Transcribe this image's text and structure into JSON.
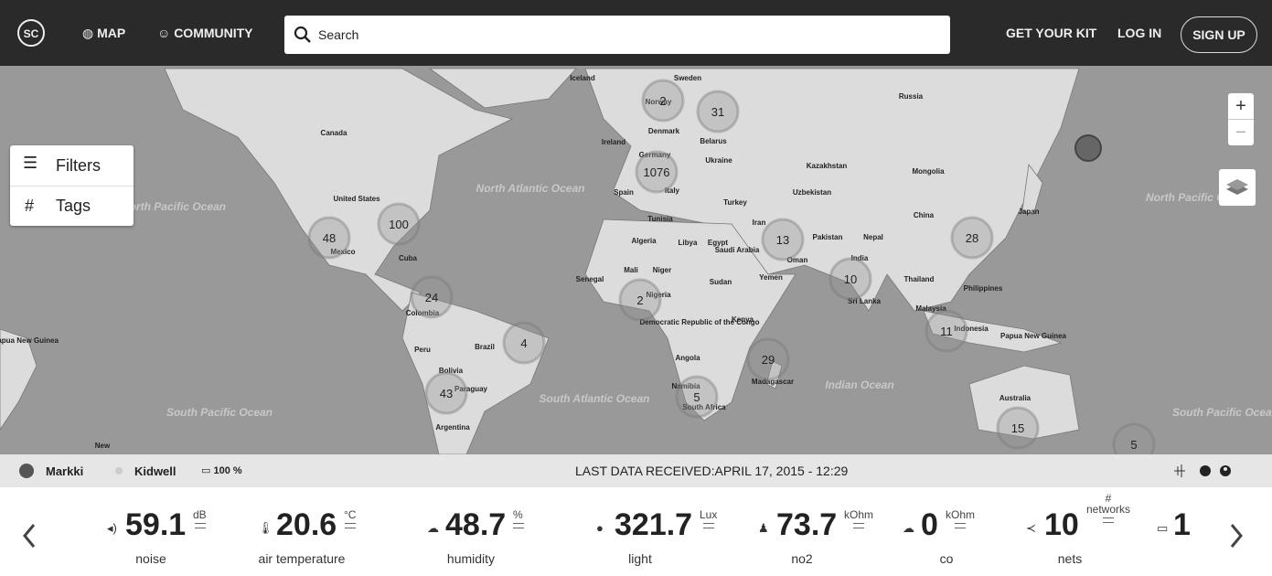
{
  "nav": {
    "logo": "SC",
    "map": "MAP",
    "community": "COMMUNITY",
    "search_placeholder": "Search",
    "get_kit": "GET YOUR KIT",
    "log_in": "LOG IN",
    "sign_up": "SIGN UP"
  },
  "map_controls": {
    "filters": "Filters",
    "tags": "Tags",
    "zoom_in": "+",
    "zoom_out": "−"
  },
  "map_labels": [
    "Iceland",
    "Sweden",
    "Russia",
    "Norway",
    "Denmark",
    "Ireland",
    "Belarus",
    "Canada",
    "Germany",
    "Ukraine",
    "Kazakhstan",
    "Mongolia",
    "Spain",
    "Italy",
    "Turkey",
    "Uzbekistan",
    "United States",
    "North Atlantic Ocean",
    "North Pacific Ocean",
    "China",
    "Japan",
    "Tunisia",
    "Iran",
    "Algeria",
    "Libya",
    "Egypt",
    "Saudi Arabia",
    "Pakistan",
    "Nepal",
    "Mexico",
    "Oman",
    "India",
    "Cuba",
    "Senegal",
    "Mali",
    "Niger",
    "Sudan",
    "Yemen",
    "Thailand",
    "Philippines",
    "Nigeria",
    "Sri Lanka",
    "Colombia",
    "Democratic Republic of the Congo",
    "Kenya",
    "Malaysia",
    "Indonesia",
    "Papua New Guinea",
    "Peru",
    "Brazil",
    "Angola",
    "Bolivia",
    "Paraguay",
    "Namibia",
    "Madagascar",
    "Indian Ocean",
    "South Atlantic Ocean",
    "Australia",
    "South Pacific Ocean",
    "Argentina",
    "South Africa",
    "Papua New Guinea",
    "North Pacific Ocean",
    "South Pacific Ocean",
    "New"
  ],
  "clusters": [
    2,
    31,
    1076,
    100,
    48,
    13,
    28,
    10,
    24,
    2,
    4,
    11,
    29,
    43,
    5,
    15,
    5
  ],
  "status": {
    "device_1": "Markki",
    "device_2": "Kidwell",
    "battery": "100 %",
    "last_data": "LAST DATA RECEIVED:APRIL 17, 2015 - 12:29"
  },
  "readings": [
    {
      "value": "59.1",
      "unit": "dB",
      "label": "noise"
    },
    {
      "value": "20.6",
      "unit": "°C",
      "label": "air temperature"
    },
    {
      "value": "48.7",
      "unit": "%",
      "label": "humidity"
    },
    {
      "value": "321.7",
      "unit": "Lux",
      "label": "light"
    },
    {
      "value": "73.7",
      "unit": "kOhm",
      "label": "no2"
    },
    {
      "value": "0",
      "unit": "kOhm",
      "label": "co"
    },
    {
      "value": "10",
      "unit": "#\nnetworks",
      "label": "nets"
    },
    {
      "value": "1"
    }
  ]
}
